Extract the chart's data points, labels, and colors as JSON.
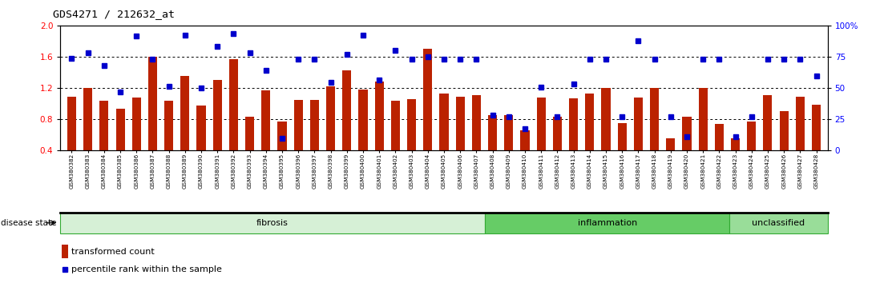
{
  "title": "GDS4271 / 212632_at",
  "samples": [
    "GSM380382",
    "GSM380383",
    "GSM380384",
    "GSM380385",
    "GSM380386",
    "GSM380387",
    "GSM380388",
    "GSM380389",
    "GSM380390",
    "GSM380391",
    "GSM380392",
    "GSM380393",
    "GSM380394",
    "GSM380395",
    "GSM380396",
    "GSM380397",
    "GSM380398",
    "GSM380399",
    "GSM380400",
    "GSM380401",
    "GSM380402",
    "GSM380403",
    "GSM380404",
    "GSM380405",
    "GSM380406",
    "GSM380407",
    "GSM380408",
    "GSM380409",
    "GSM380410",
    "GSM380411",
    "GSM380412",
    "GSM380413",
    "GSM380414",
    "GSM380415",
    "GSM380416",
    "GSM380417",
    "GSM380418",
    "GSM380419",
    "GSM380420",
    "GSM380421",
    "GSM380422",
    "GSM380423",
    "GSM380424",
    "GSM380425",
    "GSM380426",
    "GSM380427",
    "GSM380428"
  ],
  "bar_values": [
    1.08,
    1.2,
    1.03,
    0.93,
    1.07,
    1.6,
    1.03,
    1.35,
    0.97,
    1.3,
    1.57,
    0.83,
    1.17,
    0.77,
    1.04,
    1.04,
    1.22,
    1.42,
    1.18,
    1.28,
    1.03,
    1.05,
    1.7,
    1.13,
    1.08,
    1.1,
    0.85,
    0.85,
    0.65,
    1.07,
    0.83,
    1.06,
    1.13,
    1.2,
    0.75,
    1.07,
    1.2,
    0.55,
    0.83,
    1.2,
    0.73,
    0.55,
    0.77,
    1.1,
    0.9,
    1.08,
    0.98
  ],
  "blue_values": [
    1.58,
    1.65,
    1.48,
    1.15,
    1.87,
    1.57,
    1.22,
    1.88,
    1.2,
    1.73,
    1.9,
    1.65,
    1.42,
    0.55,
    1.57,
    1.57,
    1.27,
    1.63,
    1.88,
    1.3,
    1.68,
    1.57,
    1.6,
    1.57,
    1.57,
    1.57,
    0.85,
    0.83,
    0.67,
    1.21,
    0.83,
    1.25,
    1.57,
    1.57,
    0.83,
    1.8,
    1.57,
    0.83,
    0.57,
    1.57,
    1.57,
    0.57,
    0.83,
    1.57,
    1.57,
    1.57,
    1.35
  ],
  "groups": [
    {
      "label": "fibrosis",
      "start": 0,
      "end": 26,
      "color": "#d6f0d6"
    },
    {
      "label": "inflammation",
      "start": 26,
      "end": 41,
      "color": "#66cc66"
    },
    {
      "label": "unclassified",
      "start": 41,
      "end": 47,
      "color": "#99dd99"
    }
  ],
  "ylim_left": [
    0.4,
    2.0
  ],
  "ylim_right": [
    0,
    100
  ],
  "yticks_left": [
    0.4,
    0.8,
    1.2,
    1.6,
    2.0
  ],
  "yticks_right": [
    0,
    25,
    50,
    75,
    100
  ],
  "yticks_right_labels": [
    "0",
    "25",
    "50",
    "75",
    "100%"
  ],
  "hlines": [
    0.8,
    1.2,
    1.6
  ],
  "bar_color": "#bb2200",
  "dot_color": "#0000cc",
  "plot_bg": "#ffffff",
  "disease_state_label": "disease state"
}
